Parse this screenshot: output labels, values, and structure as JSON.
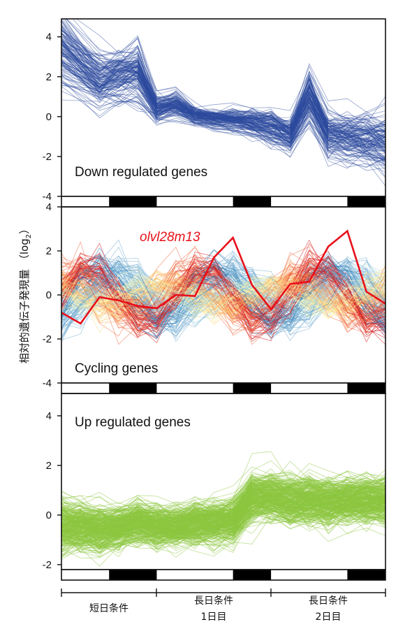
{
  "chart_data": {
    "type": "line",
    "ylabel": "相対的遺伝子発現量（log2）",
    "ylabel_main": "相対的遺伝子発現量",
    "ylabel_unit_open": "（log",
    "ylabel_unit_sub": "2",
    "ylabel_unit_close": "）",
    "n_timepoints": 18,
    "light_dark_bar": [
      "light",
      "light",
      "light",
      "dark",
      "dark",
      "dark",
      "light",
      "light",
      "light",
      "light",
      "dark",
      "dark",
      "light",
      "light",
      "light",
      "light",
      "dark",
      "dark"
    ],
    "light_dark_segments": [
      {
        "state": "light",
        "from": 0,
        "to": 2.5
      },
      {
        "state": "dark",
        "from": 2.5,
        "to": 5
      },
      {
        "state": "light",
        "from": 5,
        "to": 9
      },
      {
        "state": "dark",
        "from": 9,
        "to": 11
      },
      {
        "state": "light",
        "from": 11,
        "to": 15
      },
      {
        "state": "dark",
        "from": 15,
        "to": 17
      }
    ],
    "x_groups": [
      {
        "lines": [
          "短日条件"
        ],
        "from": 0,
        "to": 5
      },
      {
        "lines": [
          "長日条件",
          "1日目"
        ],
        "from": 5,
        "to": 11
      },
      {
        "lines": [
          "長日条件",
          "2日目"
        ],
        "from": 11,
        "to": 17
      }
    ],
    "panels": [
      {
        "title": "Down regulated genes",
        "ylim": [
          -4,
          4.9
        ],
        "yticks": [
          4,
          2,
          0,
          -2,
          -4
        ],
        "color": "#2b4a9e",
        "n_lines": 140,
        "mean_profile": [
          3.3,
          null,
          1.8,
          2.0,
          2.2,
          0.4,
          0.6,
          0.05,
          -0.1,
          -0.15,
          -0.3,
          -0.5,
          -0.9,
          1.0,
          -0.9,
          -1.0,
          -1.1,
          -1.3
        ],
        "spread": [
          1.1,
          null,
          0.7,
          0.7,
          0.8,
          0.35,
          0.35,
          0.25,
          0.25,
          0.3,
          0.35,
          0.45,
          0.45,
          0.7,
          0.6,
          0.65,
          0.7,
          0.75
        ]
      },
      {
        "title": "Cycling genes",
        "ylim": [
          -4,
          4
        ],
        "yticks": [
          4,
          2,
          0,
          -2,
          -4
        ],
        "palette": [
          "#d7191c",
          "#f07048",
          "#fdae61",
          "#fee08b",
          "#ffffbf",
          "#abd9e9",
          "#74add1",
          "#2c7bb6"
        ],
        "n_lines": 220,
        "highlight": {
          "name": "olvl28m13",
          "color": "#e8101a",
          "values": [
            -0.8,
            -1.3,
            -0.1,
            -0.25,
            -0.5,
            -0.6,
            0.0,
            -0.05,
            1.7,
            2.6,
            0.45,
            -0.65,
            0.5,
            0.6,
            2.2,
            2.9,
            0.15,
            -0.4
          ]
        }
      },
      {
        "title": "Up regulated genes",
        "ylim": [
          -2.2,
          4.9
        ],
        "yticks": [
          4,
          2,
          0,
          -2
        ],
        "color": "#8cc63f",
        "n_lines": 320,
        "mean_profile": [
          -0.45,
          -0.45,
          -0.55,
          -0.5,
          -0.3,
          -0.45,
          -0.45,
          -0.35,
          -0.3,
          -0.2,
          0.7,
          0.75,
          0.6,
          0.6,
          0.55,
          0.6,
          0.6,
          0.6
        ],
        "spread": [
          0.55,
          0.5,
          0.5,
          0.45,
          0.45,
          0.45,
          0.45,
          0.45,
          0.45,
          0.45,
          0.5,
          0.5,
          0.5,
          0.5,
          0.5,
          0.5,
          0.5,
          0.5
        ]
      }
    ]
  }
}
